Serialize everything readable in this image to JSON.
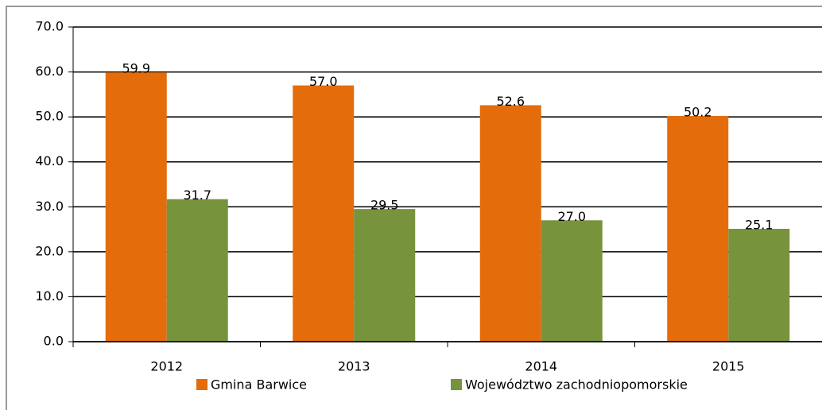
{
  "chart_data": {
    "type": "bar",
    "categories": [
      "2012",
      "2013",
      "2014",
      "2015"
    ],
    "series": [
      {
        "name": "Gmina Barwice",
        "color": "#e46c0a",
        "values": [
          59.9,
          57,
          52.6,
          50.2
        ],
        "value_labels": [
          "59.9",
          "57.0",
          "52.6",
          "50.2"
        ]
      },
      {
        "name": "Województwo zachodniopomorskie",
        "color": "#77933c",
        "values": [
          31.7,
          29.5,
          27,
          25.1
        ],
        "value_labels": [
          "31.7",
          "29.5",
          "27.0",
          "25.1"
        ]
      }
    ],
    "ylim": [
      0,
      70
    ],
    "yticks": [
      {
        "value": 0,
        "label": "0.0"
      },
      {
        "value": 10,
        "label": "10.0"
      },
      {
        "value": 20,
        "label": "20.0"
      },
      {
        "value": 30,
        "label": "30.0"
      },
      {
        "value": 40,
        "label": "40.0"
      },
      {
        "value": 50,
        "label": "50.0"
      },
      {
        "value": 60,
        "label": "60.0"
      },
      {
        "value": 70,
        "label": "70.0"
      }
    ],
    "grid": true,
    "legend": "bottom"
  }
}
